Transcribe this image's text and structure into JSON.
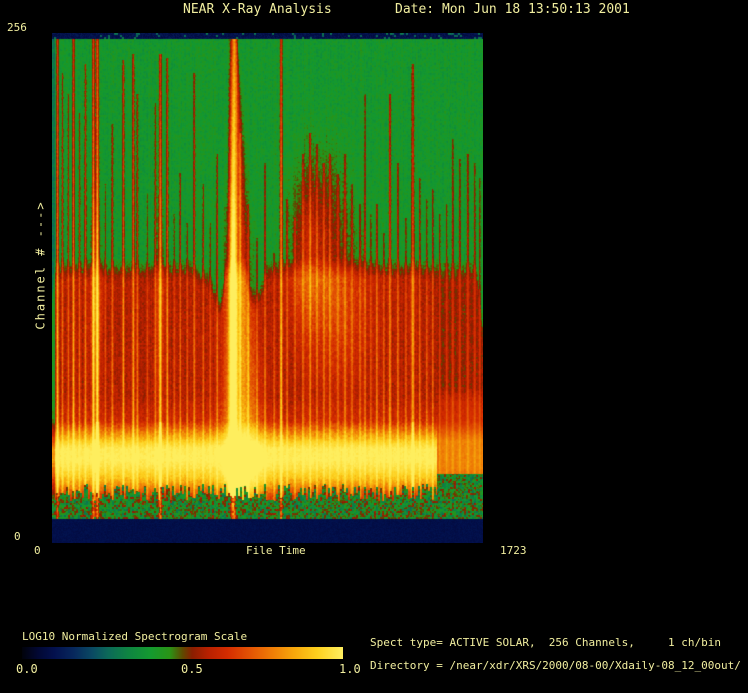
{
  "header": {
    "title": "NEAR X-Ray Analysis",
    "date_label": "Date: Mon Jun 18 13:50:13 2001"
  },
  "plot": {
    "y_axis": {
      "label": "Channel # --->",
      "tick_top": "256",
      "tick_bottom": "0"
    },
    "x_axis": {
      "label": "File Time",
      "tick_left": "0",
      "tick_right": "1723"
    }
  },
  "colorbar": {
    "label": "LOG10 Normalized Spectrogram Scale",
    "ticks": [
      "0.0",
      "0.5",
      "1.0"
    ]
  },
  "info": {
    "spect_line": "Spect type= ACTIVE SOLAR,  256 Channels,     1 ch/bin",
    "directory_line": "Directory = /near/xdr/XRS/2000/08-00/Xdaily-08_12_00out/"
  },
  "colors": {
    "text": "#f1ee9f",
    "background": "#000000",
    "field_green": "#149a30",
    "band_navy": "#07144a",
    "hot_yellow": "#ffd820",
    "streak_red": "#cc2500"
  },
  "chart_data": {
    "type": "heatmap",
    "title": "NEAR X-Ray Analysis",
    "xlabel": "File Time",
    "ylabel": "Channel #",
    "x_range": [
      0,
      1723
    ],
    "y_range": [
      0,
      256
    ],
    "scale_label": "LOG10 Normalized Spectrogram Scale",
    "scale_range": [
      0.0,
      1.0
    ],
    "spect_type": "ACTIVE SOLAR",
    "channels": 256,
    "ch_per_bin": 1,
    "palette_stops": [
      [
        0.0,
        "#01020a"
      ],
      [
        0.05,
        "#020833"
      ],
      [
        0.1,
        "#03104d"
      ],
      [
        0.16,
        "#07275c"
      ],
      [
        0.22,
        "#0a4a63"
      ],
      [
        0.27,
        "#0c6a58"
      ],
      [
        0.33,
        "#0e8442"
      ],
      [
        0.4,
        "#149a30"
      ],
      [
        0.46,
        "#2a9416"
      ],
      [
        0.5,
        "#5e4a00"
      ],
      [
        0.53,
        "#8a1e00"
      ],
      [
        0.58,
        "#b82000"
      ],
      [
        0.64,
        "#d42c00"
      ],
      [
        0.71,
        "#e35304"
      ],
      [
        0.78,
        "#ef7d06"
      ],
      [
        0.85,
        "#f7a80c"
      ],
      [
        0.92,
        "#fdd01e"
      ],
      [
        1.0,
        "#ffef60"
      ]
    ],
    "band_profile": [
      [
        0.71,
        0.0
      ],
      [
        0.76,
        0.05
      ],
      [
        0.795,
        0.3
      ],
      [
        0.815,
        0.48
      ],
      [
        0.835,
        0.5
      ],
      [
        0.85,
        0.44
      ],
      [
        0.882,
        0.26
      ],
      [
        0.906,
        0.1
      ],
      [
        0.922,
        0.04
      ]
    ],
    "streaks": [
      {
        "t": 20,
        "i": 0.7,
        "ch": 256,
        "w": 1.2
      },
      {
        "t": 40,
        "i": 0.45,
        "ch": 238,
        "w": 1.0
      },
      {
        "t": 64,
        "i": 0.4,
        "ch": 227,
        "w": 1.0
      },
      {
        "t": 84,
        "i": 0.65,
        "ch": 256,
        "w": 1.2
      },
      {
        "t": 108,
        "i": 0.45,
        "ch": 217,
        "w": 1.0
      },
      {
        "t": 132,
        "i": 0.55,
        "ch": 243,
        "w": 1.1
      },
      {
        "t": 164,
        "i": 0.8,
        "ch": 256,
        "w": 1.3,
        "g": 0.07
      },
      {
        "t": 180,
        "i": 0.85,
        "ch": 256,
        "w": 1.5,
        "g": 0.12,
        "b": 1
      },
      {
        "t": 212,
        "i": 0.35,
        "ch": 179,
        "w": 0.9
      },
      {
        "t": 240,
        "i": 0.45,
        "ch": 211,
        "w": 1.0
      },
      {
        "t": 284,
        "i": 0.6,
        "ch": 245,
        "w": 1.1
      },
      {
        "t": 324,
        "i": 0.6,
        "ch": 248,
        "w": 1.2
      },
      {
        "t": 340,
        "i": 0.5,
        "ch": 227,
        "w": 1.0
      },
      {
        "t": 380,
        "i": 0.35,
        "ch": 174,
        "w": 0.9
      },
      {
        "t": 412,
        "i": 0.45,
        "ch": 222,
        "w": 1.0
      },
      {
        "t": 432,
        "i": 0.75,
        "ch": 248,
        "w": 1.4,
        "g": 0.1,
        "b": 1
      },
      {
        "t": 460,
        "i": 0.55,
        "ch": 246,
        "w": 1.1
      },
      {
        "t": 488,
        "i": 0.35,
        "ch": 163,
        "w": 0.9
      },
      {
        "t": 512,
        "i": 0.4,
        "ch": 185,
        "w": 0.9
      },
      {
        "t": 540,
        "i": 0.35,
        "ch": 158,
        "w": 0.9
      },
      {
        "t": 568,
        "i": 0.5,
        "ch": 238,
        "w": 1.0
      },
      {
        "t": 604,
        "i": 0.4,
        "ch": 179,
        "w": 0.9
      },
      {
        "t": 632,
        "i": 0.35,
        "ch": 158,
        "w": 0.9
      },
      {
        "t": 660,
        "i": 0.45,
        "ch": 195,
        "w": 1.0
      },
      {
        "t": 724,
        "i": 1.0,
        "ch": 256,
        "w": 3.2,
        "main": 1
      },
      {
        "t": 752,
        "i": 0.45,
        "ch": 206,
        "w": 1.0
      },
      {
        "t": 784,
        "i": 0.35,
        "ch": 168,
        "w": 0.9
      },
      {
        "t": 820,
        "i": 0.35,
        "ch": 150,
        "w": 0.9
      },
      {
        "t": 852,
        "i": 0.45,
        "ch": 190,
        "w": 1.0
      },
      {
        "t": 888,
        "i": 0.35,
        "ch": 142,
        "w": 0.9
      },
      {
        "t": 916,
        "i": 0.78,
        "ch": 256,
        "w": 1.3
      },
      {
        "t": 940,
        "i": 0.4,
        "ch": 171,
        "w": 0.9
      },
      {
        "t": 972,
        "i": 0.35,
        "ch": 161,
        "w": 0.9
      },
      {
        "t": 1004,
        "i": 0.4,
        "ch": 195,
        "w": 1.0
      },
      {
        "t": 1032,
        "i": 0.45,
        "ch": 206,
        "w": 1.1
      },
      {
        "t": 1060,
        "i": 0.4,
        "ch": 200,
        "w": 1.0
      },
      {
        "t": 1088,
        "i": 0.4,
        "ch": 190,
        "w": 1.0
      },
      {
        "t": 1112,
        "i": 0.4,
        "ch": 195,
        "w": 1.1
      },
      {
        "t": 1144,
        "i": 0.38,
        "ch": 184,
        "w": 1.0
      },
      {
        "t": 1172,
        "i": 0.42,
        "ch": 195,
        "w": 1.1
      },
      {
        "t": 1200,
        "i": 0.38,
        "ch": 179,
        "w": 1.0
      },
      {
        "t": 1232,
        "i": 0.35,
        "ch": 168,
        "w": 0.9
      },
      {
        "t": 1252,
        "i": 0.4,
        "ch": 227,
        "w": 1.0
      },
      {
        "t": 1276,
        "i": 0.35,
        "ch": 163,
        "w": 0.9
      },
      {
        "t": 1300,
        "i": 0.45,
        "ch": 168,
        "w": 1.0
      },
      {
        "t": 1328,
        "i": 0.38,
        "ch": 153,
        "w": 0.9
      },
      {
        "t": 1352,
        "i": 0.55,
        "ch": 227,
        "w": 1.2
      },
      {
        "t": 1384,
        "i": 0.45,
        "ch": 190,
        "w": 1.0
      },
      {
        "t": 1416,
        "i": 0.38,
        "ch": 161,
        "w": 0.9
      },
      {
        "t": 1444,
        "i": 0.6,
        "ch": 243,
        "w": 1.3,
        "g": 0.06,
        "b": 1
      },
      {
        "t": 1472,
        "i": 0.45,
        "ch": 182,
        "w": 1.0
      },
      {
        "t": 1500,
        "i": 0.38,
        "ch": 171,
        "w": 0.9
      },
      {
        "t": 1524,
        "i": 0.4,
        "ch": 176,
        "w": 0.9
      },
      {
        "t": 1552,
        "i": 0.38,
        "ch": 163,
        "w": 0.9
      },
      {
        "t": 1580,
        "i": 0.4,
        "ch": 168,
        "w": 0.9
      },
      {
        "t": 1604,
        "i": 0.42,
        "ch": 203,
        "w": 1.0
      },
      {
        "t": 1632,
        "i": 0.4,
        "ch": 192,
        "w": 1.0
      },
      {
        "t": 1664,
        "i": 0.45,
        "ch": 195,
        "w": 1.0
      },
      {
        "t": 1692,
        "i": 0.42,
        "ch": 190,
        "w": 1.0
      },
      {
        "t": 1712,
        "i": 0.38,
        "ch": 182,
        "w": 0.9
      }
    ],
    "blobs": [
      {
        "t": 1064,
        "y": 0.373,
        "a": 0.13,
        "sx": 26,
        "sy": 75
      },
      {
        "t": 1136,
        "y": 0.53,
        "a": 0.1,
        "sx": 34,
        "sy": 78
      },
      {
        "t": 1012,
        "y": 0.45,
        "a": 0.08,
        "sx": 14,
        "sy": 60
      }
    ],
    "right_block_start_t": 1540
  }
}
